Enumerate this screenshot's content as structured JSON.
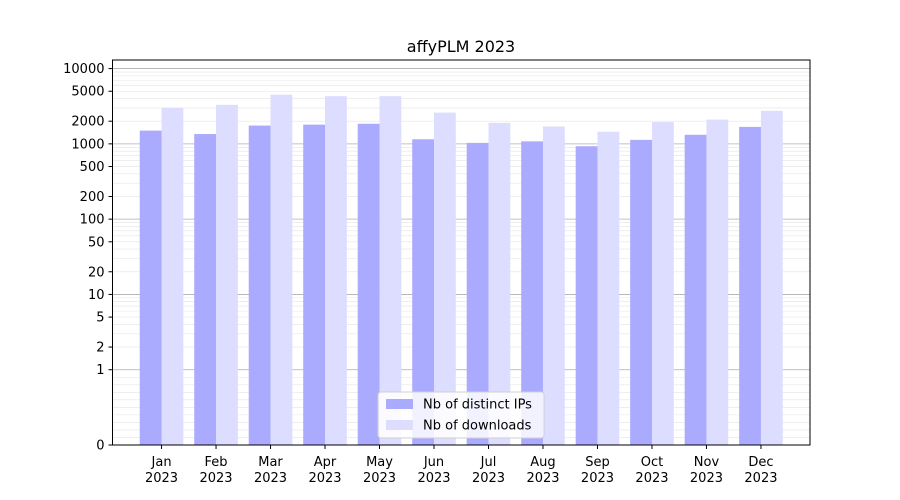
{
  "chart_data": {
    "type": "bar",
    "title": "affyPLM 2023",
    "xlabel": "",
    "ylabel": "",
    "scale": "symlog",
    "ylim": [
      0,
      13000
    ],
    "yticks": [
      0,
      1,
      2,
      5,
      10,
      20,
      50,
      100,
      200,
      500,
      1000,
      2000,
      5000,
      10000
    ],
    "grid": true,
    "legend_position": "lower center",
    "categories": [
      "Jan\n2023",
      "Feb\n2023",
      "Mar\n2023",
      "Apr\n2023",
      "May\n2023",
      "Jun\n2023",
      "Jul\n2023",
      "Aug\n2023",
      "Sep\n2023",
      "Oct\n2023",
      "Nov\n2023",
      "Dec\n2023"
    ],
    "series": [
      {
        "name": "Nb of distinct IPs",
        "color": "#aaaaff",
        "values": [
          1500,
          1350,
          1750,
          1800,
          1850,
          1150,
          1030,
          1080,
          930,
          1130,
          1320,
          1680
        ]
      },
      {
        "name": "Nb of downloads",
        "color": "#ddddff",
        "values": [
          3000,
          3300,
          4500,
          4300,
          4300,
          2600,
          1900,
          1700,
          1450,
          1950,
          2100,
          2750
        ]
      }
    ]
  }
}
